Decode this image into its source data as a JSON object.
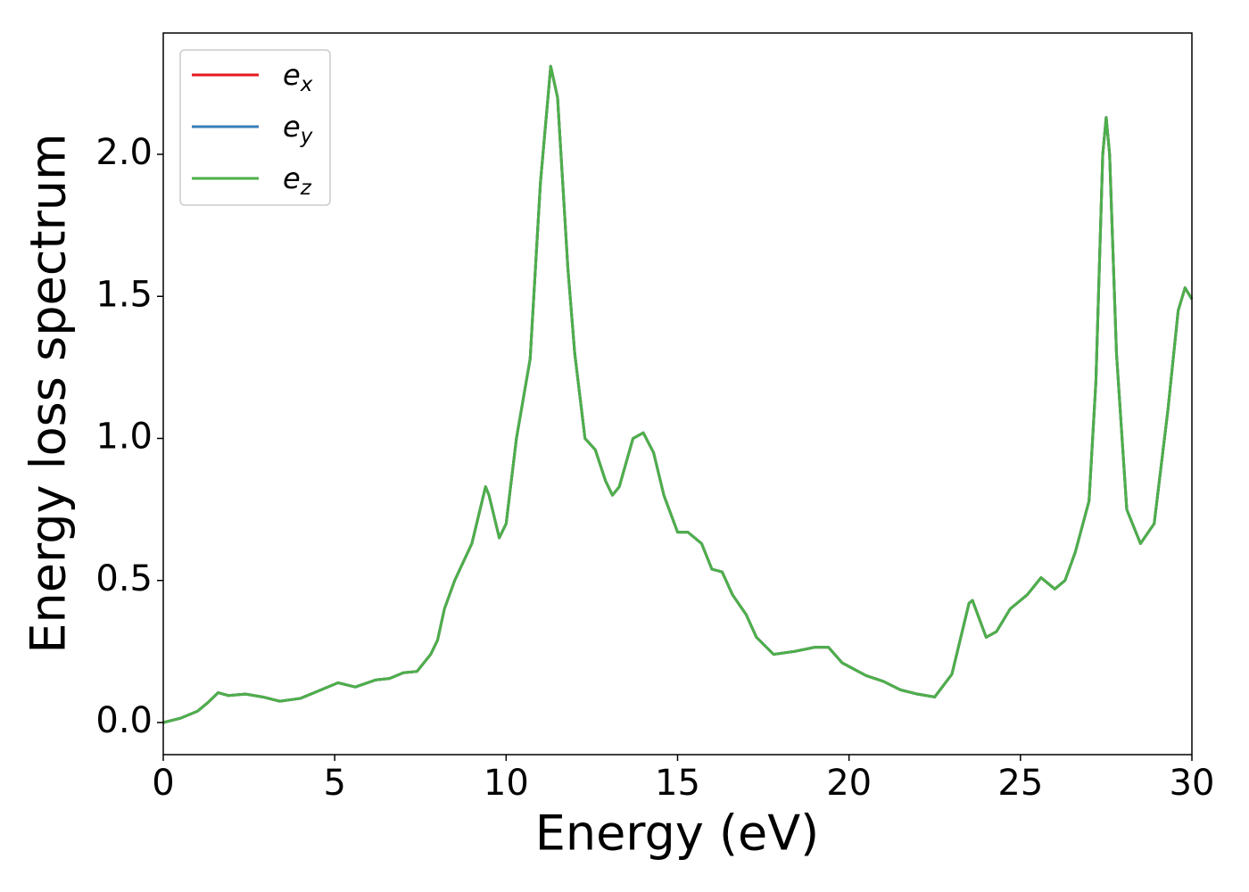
{
  "chart_data": {
    "type": "line",
    "xlabel": "Energy (eV)",
    "ylabel": "Energy loss spectrum",
    "x": [
      0,
      0.5,
      1,
      1.3,
      1.6,
      1.9,
      2.4,
      2.9,
      3.4,
      4,
      4.5,
      5.1,
      5.6,
      6.2,
      6.6,
      7,
      7.4,
      7.8,
      8,
      8.2,
      8.5,
      9,
      9.4,
      9.5,
      9.8,
      10,
      10.3,
      10.7,
      11,
      11.3,
      11.5,
      11.8,
      12,
      12.3,
      12.6,
      12.9,
      13.1,
      13.3,
      13.7,
      14,
      14.3,
      14.6,
      15,
      15.3,
      15.7,
      16,
      16.3,
      16.6,
      17,
      17.3,
      17.8,
      18.4,
      19,
      19.4,
      19.8,
      20.5,
      21,
      21.5,
      22,
      22.5,
      23,
      23.5,
      23.6,
      24,
      24.3,
      24.7,
      25.2,
      25.6,
      26,
      26.3,
      26.6,
      27,
      27.2,
      27.4,
      27.5,
      27.6,
      27.8,
      28.1,
      28.5,
      28.9,
      29.3,
      29.6,
      29.8,
      30
    ],
    "series": [
      {
        "name": "e_x",
        "color": "#e41a1c",
        "values": [
          0,
          0.015,
          0.04,
          0.07,
          0.105,
          0.095,
          0.1,
          0.09,
          0.075,
          0.085,
          0.11,
          0.14,
          0.125,
          0.15,
          0.155,
          0.175,
          0.18,
          0.24,
          0.29,
          0.4,
          0.5,
          0.63,
          0.83,
          0.8,
          0.65,
          0.7,
          1.0,
          1.28,
          1.9,
          2.31,
          2.2,
          1.6,
          1.3,
          1.0,
          0.96,
          0.85,
          0.8,
          0.83,
          1.0,
          1.02,
          0.95,
          0.8,
          0.67,
          0.67,
          0.63,
          0.54,
          0.53,
          0.45,
          0.38,
          0.3,
          0.24,
          0.25,
          0.265,
          0.265,
          0.21,
          0.165,
          0.145,
          0.115,
          0.1,
          0.09,
          0.17,
          0.42,
          0.43,
          0.3,
          0.32,
          0.4,
          0.45,
          0.51,
          0.47,
          0.5,
          0.6,
          0.78,
          1.2,
          2.0,
          2.13,
          2.0,
          1.3,
          0.75,
          0.63,
          0.7,
          1.1,
          1.45,
          1.53,
          1.49
        ]
      },
      {
        "name": "e_y",
        "color": "#377eb8",
        "values": [
          0,
          0.015,
          0.04,
          0.07,
          0.105,
          0.095,
          0.1,
          0.09,
          0.075,
          0.085,
          0.11,
          0.14,
          0.125,
          0.15,
          0.155,
          0.175,
          0.18,
          0.24,
          0.29,
          0.4,
          0.5,
          0.63,
          0.83,
          0.8,
          0.65,
          0.7,
          1.0,
          1.28,
          1.9,
          2.31,
          2.2,
          1.6,
          1.3,
          1.0,
          0.96,
          0.85,
          0.8,
          0.83,
          1.0,
          1.02,
          0.95,
          0.8,
          0.67,
          0.67,
          0.63,
          0.54,
          0.53,
          0.45,
          0.38,
          0.3,
          0.24,
          0.25,
          0.265,
          0.265,
          0.21,
          0.165,
          0.145,
          0.115,
          0.1,
          0.09,
          0.17,
          0.42,
          0.43,
          0.3,
          0.32,
          0.4,
          0.45,
          0.51,
          0.47,
          0.5,
          0.6,
          0.78,
          1.2,
          2.0,
          2.13,
          2.0,
          1.3,
          0.75,
          0.63,
          0.7,
          1.1,
          1.45,
          1.53,
          1.49
        ]
      },
      {
        "name": "e_z",
        "color": "#4daf4a",
        "values": [
          0,
          0.015,
          0.04,
          0.07,
          0.105,
          0.095,
          0.1,
          0.09,
          0.075,
          0.085,
          0.11,
          0.14,
          0.125,
          0.15,
          0.155,
          0.175,
          0.18,
          0.24,
          0.29,
          0.4,
          0.5,
          0.63,
          0.83,
          0.8,
          0.65,
          0.7,
          1.0,
          1.28,
          1.9,
          2.31,
          2.2,
          1.6,
          1.3,
          1.0,
          0.96,
          0.85,
          0.8,
          0.83,
          1.0,
          1.02,
          0.95,
          0.8,
          0.67,
          0.67,
          0.63,
          0.54,
          0.53,
          0.45,
          0.38,
          0.3,
          0.24,
          0.25,
          0.265,
          0.265,
          0.21,
          0.165,
          0.145,
          0.115,
          0.1,
          0.09,
          0.17,
          0.42,
          0.43,
          0.3,
          0.32,
          0.4,
          0.45,
          0.51,
          0.47,
          0.5,
          0.6,
          0.78,
          1.2,
          2.0,
          2.13,
          2.0,
          1.3,
          0.75,
          0.63,
          0.7,
          1.1,
          1.45,
          1.53,
          1.49
        ]
      }
    ],
    "xlim": [
      0,
      30
    ],
    "xticks": [
      0,
      5,
      10,
      15,
      20,
      25,
      30
    ],
    "ylim": [
      -0.113,
      2.427
    ],
    "yticks": [
      {
        "value": 0,
        "label": "0.0"
      },
      {
        "value": 0.5,
        "label": "0.5"
      },
      {
        "value": 1,
        "label": "1.0"
      },
      {
        "value": 1.5,
        "label": "1.5"
      },
      {
        "value": 2,
        "label": "2.0"
      }
    ],
    "grid": false,
    "legend": "upper left"
  }
}
